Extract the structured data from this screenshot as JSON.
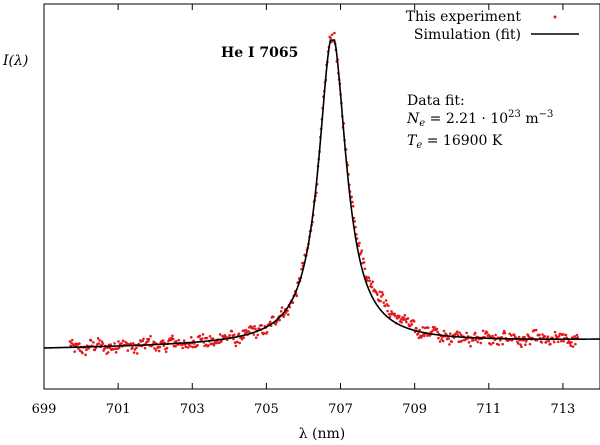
{
  "chart_data": {
    "type": "scatter",
    "title": "He I 7065",
    "xlabel": "λ (nm)",
    "ylabel": "I(λ)",
    "xlim": [
      699,
      714
    ],
    "xticks": [
      "699",
      "701",
      "703",
      "705",
      "707",
      "709",
      "711",
      "713"
    ],
    "grid": false,
    "legend_position": "top-right",
    "legend": [
      {
        "label": "This experiment",
        "marker": "dot",
        "color": "#e31a1c"
      },
      {
        "label": "Simulation (fit)",
        "marker": "line",
        "color": "#000000"
      }
    ],
    "annotation": {
      "heading": "Data fit:",
      "ne_value": "2.21",
      "ne_exponent": "23",
      "ne_unit": "m",
      "ne_unit_exp": "−3",
      "te_value": "16900",
      "te_unit": "K"
    },
    "series": [
      {
        "name": "Simulation (fit)",
        "kind": "line",
        "color": "#000000",
        "profile": {
          "center": 706.78,
          "hwhm": 0.45,
          "peak": 1.0,
          "baseline": 0.0,
          "left_slope": 0.0062,
          "right_tail": 0.004
        }
      },
      {
        "name": "This experiment",
        "kind": "scatter",
        "color": "#e31a1c",
        "x_range": [
          699.7,
          713.4
        ],
        "n_points": 650,
        "noise_amplitude": 0.018
      }
    ]
  }
}
